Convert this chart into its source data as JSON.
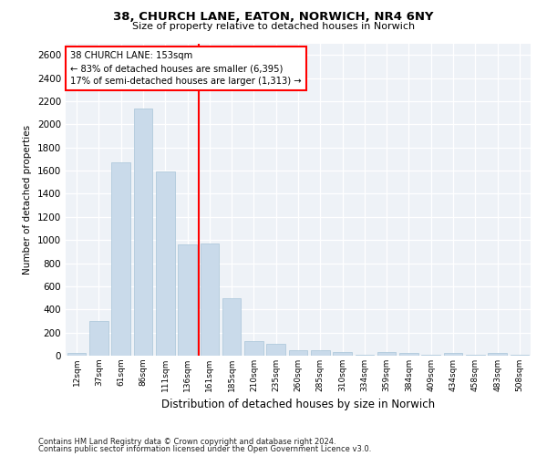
{
  "title": "38, CHURCH LANE, EATON, NORWICH, NR4 6NY",
  "subtitle": "Size of property relative to detached houses in Norwich",
  "xlabel": "Distribution of detached houses by size in Norwich",
  "ylabel": "Number of detached properties",
  "bar_color": "#c9daea",
  "bar_edgecolor": "#a8c4d8",
  "vline_color": "red",
  "annotation_title": "38 CHURCH LANE: 153sqm",
  "annotation_line1": "← 83% of detached houses are smaller (6,395)",
  "annotation_line2": "17% of semi-detached houses are larger (1,313) →",
  "categories": [
    "12sqm",
    "37sqm",
    "61sqm",
    "86sqm",
    "111sqm",
    "136sqm",
    "161sqm",
    "185sqm",
    "210sqm",
    "235sqm",
    "260sqm",
    "285sqm",
    "310sqm",
    "334sqm",
    "359sqm",
    "384sqm",
    "409sqm",
    "434sqm",
    "458sqm",
    "483sqm",
    "508sqm"
  ],
  "values": [
    25,
    300,
    1670,
    2140,
    1590,
    960,
    970,
    500,
    125,
    100,
    50,
    50,
    35,
    5,
    35,
    25,
    5,
    20,
    5,
    25,
    5
  ],
  "ylim": [
    0,
    2700
  ],
  "yticks": [
    0,
    200,
    400,
    600,
    800,
    1000,
    1200,
    1400,
    1600,
    1800,
    2000,
    2200,
    2400,
    2600
  ],
  "footer1": "Contains HM Land Registry data © Crown copyright and database right 2024.",
  "footer2": "Contains public sector information licensed under the Open Government Licence v3.0.",
  "background_color": "#eef2f7"
}
